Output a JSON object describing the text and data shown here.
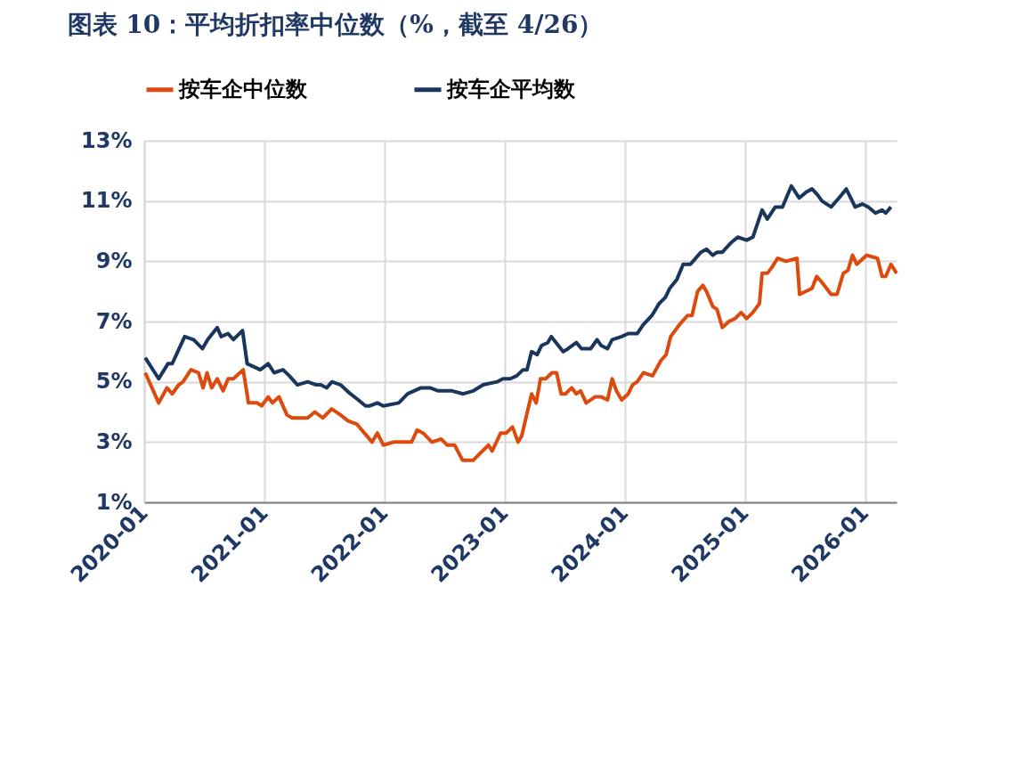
{
  "chart_data": {
    "type": "line",
    "title": "图表 10：平均折扣率中位数（%，截至 4/26）",
    "xlim": [
      "2020-01-01",
      "2026-04-07"
    ],
    "xticks": [
      {
        "value": "2020-01",
        "label": "2020-01"
      },
      {
        "value": "2021-01",
        "label": "2021-01"
      },
      {
        "value": "2022-01",
        "label": "2022-01"
      },
      {
        "value": "2023-01",
        "label": "2023-01"
      },
      {
        "value": "2024-01",
        "label": "2024-01"
      },
      {
        "value": "2025-01",
        "label": "2025-01"
      },
      {
        "value": "2026-01",
        "label": "2026-01"
      }
    ],
    "ylim": [
      1,
      13
    ],
    "yticks": [
      {
        "value": 1,
        "label": "1%"
      },
      {
        "value": 3,
        "label": "3%"
      },
      {
        "value": 5,
        "label": "5%"
      },
      {
        "value": 7,
        "label": "7%"
      },
      {
        "value": 9,
        "label": "9%"
      },
      {
        "value": 11,
        "label": "11%"
      },
      {
        "value": 13,
        "label": "13%"
      }
    ],
    "grid": true,
    "legend": "top",
    "marker": "none",
    "line_style": "solid",
    "series": [
      {
        "name": "按车企中位数",
        "color": "#dc4a0e",
        "x": [
          "2020-01-04",
          "2020-02-14",
          "2020-03-10",
          "2020-03-26",
          "2020-04-15",
          "2020-04-28",
          "2020-05-22",
          "2020-06-14",
          "2020-06-28",
          "2020-07-10",
          "2020-07-24",
          "2020-08-10",
          "2020-08-28",
          "2020-09-12",
          "2020-09-28",
          "2020-10-28",
          "2020-11-13",
          "2020-12-10",
          "2020-12-23",
          "2021-01-12",
          "2021-01-25",
          "2021-02-14",
          "2021-03-10",
          "2021-03-26",
          "2021-04-23",
          "2021-05-12",
          "2021-06-03",
          "2021-06-27",
          "2021-07-24",
          "2021-08-20",
          "2021-09-12",
          "2021-10-08",
          "2021-11-24",
          "2021-12-10",
          "2021-12-28",
          "2022-01-28",
          "2022-02-27",
          "2022-03-24",
          "2022-04-10",
          "2022-04-28",
          "2022-05-25",
          "2022-06-22",
          "2022-07-10",
          "2022-08-02",
          "2022-08-26",
          "2022-09-28",
          "2022-10-16",
          "2022-11-13",
          "2022-11-24",
          "2022-12-20",
          "2023-01-06",
          "2023-01-25",
          "2023-02-11",
          "2023-02-22",
          "2023-03-24",
          "2023-04-07",
          "2023-04-20",
          "2023-05-06",
          "2023-05-25",
          "2023-06-08",
          "2023-06-22",
          "2023-07-05",
          "2023-07-24",
          "2023-08-07",
          "2023-08-20",
          "2023-09-06",
          "2023-10-03",
          "2023-10-22",
          "2023-11-10",
          "2023-11-24",
          "2023-12-07",
          "2023-12-23",
          "2024-01-12",
          "2024-01-25",
          "2024-02-08",
          "2024-02-27",
          "2024-03-26",
          "2024-04-20",
          "2024-05-06",
          "2024-05-20",
          "2024-06-16",
          "2024-07-10",
          "2024-07-24",
          "2024-08-10",
          "2024-08-26",
          "2024-09-06",
          "2024-09-25",
          "2024-10-08",
          "2024-10-24",
          "2024-11-13",
          "2024-12-02",
          "2024-12-20",
          "2025-01-06",
          "2025-01-25",
          "2025-02-14",
          "2025-02-22",
          "2025-03-10",
          "2025-03-24",
          "2025-04-10",
          "2025-05-06",
          "2025-06-08",
          "2025-06-16",
          "2025-07-24",
          "2025-08-07",
          "2025-08-23",
          "2025-09-20",
          "2025-10-08",
          "2025-10-27",
          "2025-11-10",
          "2025-11-24",
          "2025-12-07",
          "2026-01-06",
          "2026-02-08",
          "2026-02-22",
          "2026-03-05",
          "2026-03-21",
          "2026-04-07"
        ],
        "values": [
          5.3,
          4.3,
          4.8,
          4.6,
          4.9,
          5.0,
          5.4,
          5.3,
          4.8,
          5.3,
          4.8,
          5.1,
          4.7,
          5.1,
          5.1,
          5.4,
          4.3,
          4.3,
          4.2,
          4.5,
          4.3,
          4.5,
          3.9,
          3.8,
          3.8,
          3.8,
          4.0,
          3.8,
          4.1,
          3.9,
          3.7,
          3.6,
          3.0,
          3.3,
          2.9,
          3.0,
          3.0,
          3.0,
          3.4,
          3.3,
          3.0,
          3.1,
          2.9,
          2.9,
          2.4,
          2.4,
          2.6,
          2.9,
          2.7,
          3.3,
          3.3,
          3.5,
          3.0,
          3.2,
          4.6,
          4.3,
          5.1,
          5.1,
          5.3,
          5.3,
          4.6,
          4.6,
          4.8,
          4.6,
          4.7,
          4.3,
          4.5,
          4.5,
          4.4,
          5.1,
          4.7,
          4.4,
          4.6,
          4.9,
          5.0,
          5.3,
          5.2,
          5.7,
          5.9,
          6.5,
          6.9,
          7.2,
          7.2,
          8.0,
          8.2,
          8.0,
          7.5,
          7.4,
          6.8,
          7.0,
          7.1,
          7.3,
          7.1,
          7.3,
          7.6,
          8.6,
          8.6,
          8.8,
          9.1,
          9.0,
          9.1,
          7.9,
          8.1,
          8.5,
          8.3,
          7.9,
          7.9,
          8.6,
          8.7,
          9.2,
          8.9,
          9.2,
          9.1,
          8.5,
          8.5,
          8.9,
          8.6
        ]
      },
      {
        "name": "按车企平均数",
        "color": "#1b365d",
        "x": [
          "2020-01-04",
          "2020-02-14",
          "2020-03-13",
          "2020-03-26",
          "2020-05-03",
          "2020-05-30",
          "2020-06-26",
          "2020-07-12",
          "2020-08-10",
          "2020-08-22",
          "2020-09-12",
          "2020-09-28",
          "2020-10-26",
          "2020-11-09",
          "2020-12-19",
          "2021-01-12",
          "2021-01-30",
          "2021-02-26",
          "2021-03-17",
          "2021-04-11",
          "2021-05-12",
          "2021-06-07",
          "2021-06-21",
          "2021-07-09",
          "2021-07-25",
          "2021-08-20",
          "2021-09-19",
          "2021-10-13",
          "2021-11-04",
          "2021-11-17",
          "2021-12-10",
          "2021-12-28",
          "2022-02-13",
          "2022-03-12",
          "2022-04-22",
          "2022-05-19",
          "2022-06-13",
          "2022-07-25",
          "2022-08-28",
          "2022-09-28",
          "2022-10-28",
          "2022-12-09",
          "2022-12-27",
          "2023-01-18",
          "2023-02-07",
          "2023-02-26",
          "2023-03-10",
          "2023-03-24",
          "2023-04-10",
          "2023-04-23",
          "2023-05-12",
          "2023-05-23",
          "2023-06-28",
          "2023-07-13",
          "2023-08-07",
          "2023-08-23",
          "2023-09-20",
          "2023-10-09",
          "2023-10-22",
          "2023-11-10",
          "2023-11-24",
          "2023-12-23",
          "2024-01-12",
          "2024-02-08",
          "2024-02-27",
          "2024-03-24",
          "2024-04-15",
          "2024-05-04",
          "2024-05-17",
          "2024-06-08",
          "2024-06-27",
          "2024-07-19",
          "2024-08-20",
          "2024-09-06",
          "2024-09-25",
          "2024-10-08",
          "2024-10-24",
          "2024-11-18",
          "2024-12-10",
          "2025-01-06",
          "2025-01-25",
          "2025-02-22",
          "2025-03-10",
          "2025-04-03",
          "2025-04-25",
          "2025-05-22",
          "2025-06-15",
          "2025-07-07",
          "2025-07-24",
          "2025-08-10",
          "2025-08-23",
          "2025-09-20",
          "2025-10-14",
          "2025-11-05",
          "2025-12-02",
          "2025-12-24",
          "2026-01-11",
          "2026-02-02",
          "2026-02-22",
          "2026-03-05",
          "2026-03-21"
        ],
        "values": [
          5.8,
          5.1,
          5.6,
          5.6,
          6.5,
          6.4,
          6.1,
          6.4,
          6.8,
          6.5,
          6.6,
          6.4,
          6.7,
          5.6,
          5.4,
          5.6,
          5.3,
          5.4,
          5.2,
          4.9,
          5.0,
          4.9,
          4.9,
          4.8,
          5.0,
          4.9,
          4.6,
          4.4,
          4.2,
          4.2,
          4.3,
          4.2,
          4.3,
          4.6,
          4.8,
          4.8,
          4.7,
          4.7,
          4.6,
          4.7,
          4.9,
          5.0,
          5.1,
          5.1,
          5.2,
          5.4,
          5.4,
          6.0,
          5.9,
          6.2,
          6.3,
          6.5,
          6.0,
          6.1,
          6.3,
          6.1,
          6.1,
          6.4,
          6.2,
          6.1,
          6.4,
          6.5,
          6.6,
          6.6,
          6.9,
          7.2,
          7.6,
          7.8,
          8.1,
          8.4,
          8.9,
          8.9,
          9.3,
          9.4,
          9.2,
          9.3,
          9.3,
          9.6,
          9.8,
          9.7,
          9.8,
          10.7,
          10.4,
          10.8,
          10.8,
          11.5,
          11.1,
          11.3,
          11.4,
          11.2,
          11.0,
          10.8,
          11.1,
          11.4,
          10.8,
          10.9,
          10.8,
          10.6,
          10.7,
          10.6,
          10.8
        ]
      }
    ]
  }
}
